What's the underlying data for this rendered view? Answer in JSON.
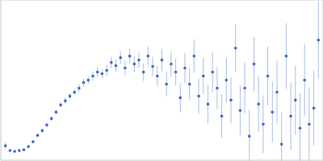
{
  "chart_data": {
    "type": "scatter",
    "color": "#3a66c4",
    "marker": "circle",
    "grid": true,
    "tick_labels": false,
    "xlim": [
      0,
      0.35
    ],
    "xticks": [
      0.1
    ],
    "ylim": [
      0,
      2
    ],
    "yticks": [
      1
    ],
    "x": [
      0.005,
      0.01,
      0.015,
      0.02,
      0.025,
      0.03,
      0.035,
      0.04,
      0.045,
      0.05,
      0.055,
      0.06,
      0.065,
      0.07,
      0.075,
      0.08,
      0.085,
      0.09,
      0.095,
      0.1,
      0.105,
      0.11,
      0.115,
      0.12,
      0.125,
      0.13,
      0.135,
      0.14,
      0.145,
      0.15,
      0.155,
      0.16,
      0.165,
      0.17,
      0.175,
      0.18,
      0.185,
      0.19,
      0.195,
      0.2,
      0.205,
      0.21,
      0.215,
      0.22,
      0.225,
      0.23,
      0.235,
      0.24,
      0.245,
      0.25,
      0.255,
      0.26,
      0.265,
      0.27,
      0.275,
      0.28,
      0.285,
      0.29,
      0.295,
      0.3,
      0.305,
      0.31,
      0.315,
      0.32,
      0.325,
      0.33,
      0.335,
      0.34,
      0.345
    ],
    "values": [
      0.18,
      0.12,
      0.11,
      0.12,
      0.13,
      0.17,
      0.23,
      0.31,
      0.37,
      0.44,
      0.52,
      0.6,
      0.69,
      0.74,
      0.8,
      0.85,
      0.9,
      0.97,
      1.0,
      1.05,
      1.1,
      1.08,
      1.12,
      1.22,
      1.18,
      1.28,
      1.15,
      1.3,
      1.2,
      1.25,
      1.1,
      1.3,
      1.17,
      1.05,
      1.25,
      0.95,
      1.2,
      1.1,
      0.78,
      1.15,
      0.95,
      1.3,
      0.8,
      1.05,
      0.7,
      1.1,
      0.9,
      0.55,
      1.0,
      0.75,
      1.4,
      0.62,
      0.9,
      0.3,
      1.2,
      0.7,
      0.45,
      1.05,
      0.6,
      0.85,
      0.2,
      1.3,
      0.55,
      0.75,
      0.4,
      1.0,
      0.45,
      0.65,
      1.5
    ],
    "errors": [
      0.04,
      0.02,
      0.02,
      0.02,
      0.02,
      0.02,
      0.02,
      0.02,
      0.03,
      0.03,
      0.03,
      0.03,
      0.03,
      0.04,
      0.04,
      0.04,
      0.05,
      0.05,
      0.05,
      0.06,
      0.06,
      0.06,
      0.07,
      0.07,
      0.08,
      0.08,
      0.09,
      0.09,
      0.1,
      0.1,
      0.11,
      0.12,
      0.12,
      0.13,
      0.14,
      0.15,
      0.16,
      0.17,
      0.18,
      0.19,
      0.2,
      0.21,
      0.22,
      0.23,
      0.24,
      0.25,
      0.26,
      0.27,
      0.28,
      0.29,
      0.3,
      0.31,
      0.32,
      0.33,
      0.34,
      0.35,
      0.36,
      0.37,
      0.38,
      0.39,
      0.4,
      0.41,
      0.42,
      0.43,
      0.44,
      0.45,
      0.46,
      0.47,
      0.48
    ]
  }
}
